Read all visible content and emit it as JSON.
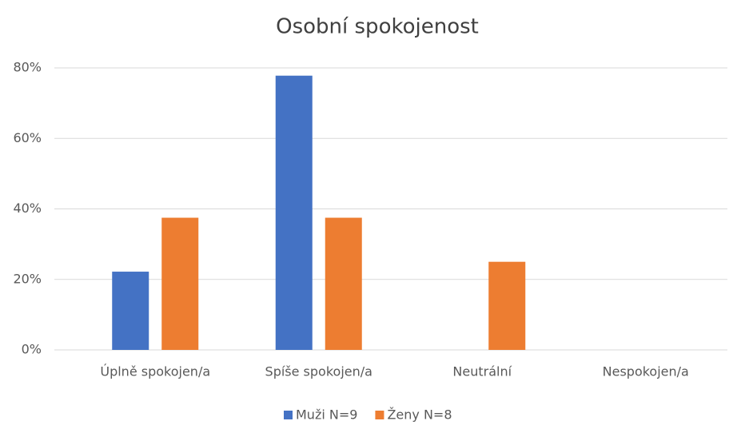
{
  "chart_data": {
    "type": "bar",
    "title": "Osobní spokojenost",
    "categories": [
      "Úplně spokojen/a",
      "Spíše spokojen/a",
      "Neutrální",
      "Nespokojen/a"
    ],
    "series": [
      {
        "name": "Muži N=9",
        "color": "#4472c4",
        "values": [
          22.2,
          77.8,
          0,
          0
        ]
      },
      {
        "name": "Ženy N=8",
        "color": "#ed7d31",
        "values": [
          37.5,
          37.5,
          25,
          0
        ]
      }
    ],
    "ylim": [
      0,
      80
    ],
    "yticks": [
      {
        "value": 0,
        "label": "0%"
      },
      {
        "value": 20,
        "label": "20%"
      },
      {
        "value": 40,
        "label": "40%"
      },
      {
        "value": 60,
        "label": "60%"
      },
      {
        "value": 80,
        "label": "80%"
      }
    ],
    "grid": true,
    "legend": "bottom"
  }
}
